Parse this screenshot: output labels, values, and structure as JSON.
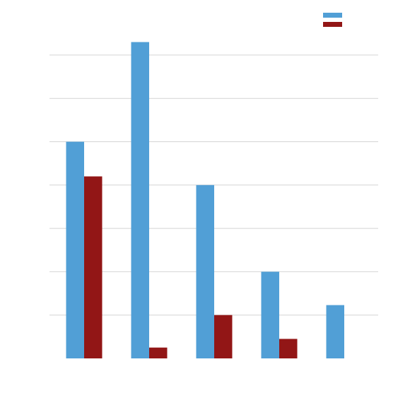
{
  "colors": {
    "series_1": "#519fd6",
    "series_2": "#921616",
    "grid": "#d4d4d4",
    "background": "#ffffff"
  },
  "chart_data": {
    "type": "bar",
    "title": "",
    "xlabel": "",
    "ylabel": "",
    "categories": [
      "",
      "",
      "",
      "",
      ""
    ],
    "series": [
      {
        "values": [
          5.0,
          7.3,
          4.0,
          2.0,
          1.23
        ]
      },
      {
        "values": [
          4.2,
          0.25,
          1.0,
          0.45,
          0
        ]
      }
    ],
    "ylim": [
      0,
      7
    ],
    "grid": true,
    "legend": "top-right",
    "legend_entries": [
      "",
      ""
    ]
  }
}
